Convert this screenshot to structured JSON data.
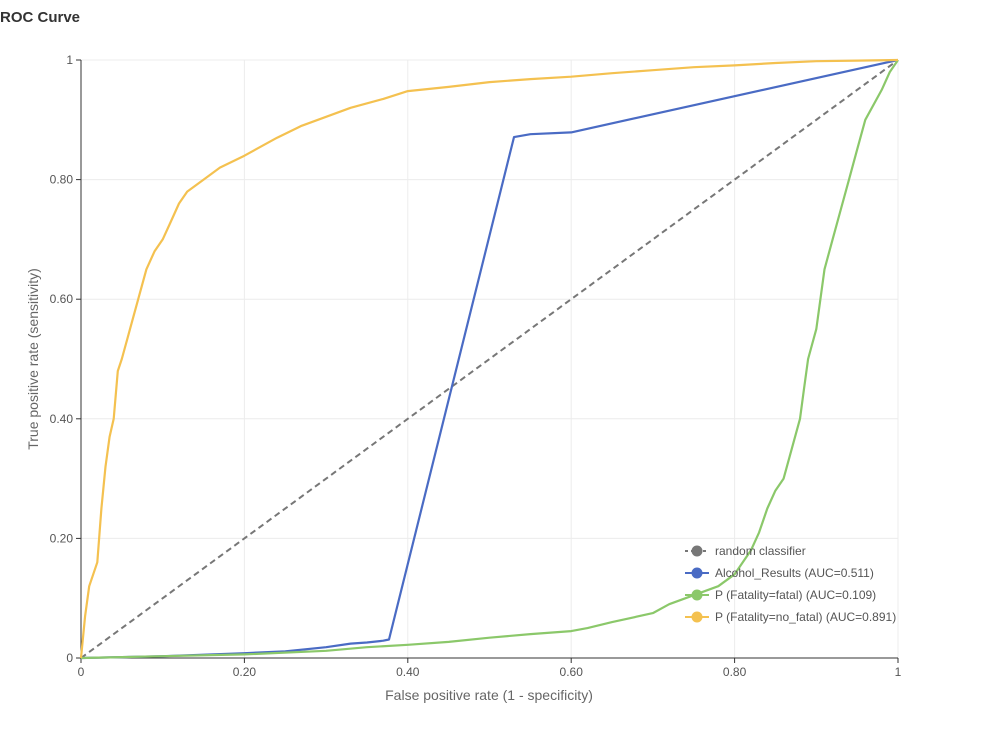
{
  "chart_data": {
    "type": "line",
    "title": "ROC Curve",
    "xlabel": "False positive rate (1 - specificity)",
    "ylabel": "True positive rate (sensitivity)",
    "xlim": [
      0,
      1
    ],
    "ylim": [
      0,
      1
    ],
    "grid": true,
    "legend_position": "bottom-right",
    "x_ticks": [
      {
        "value": 0,
        "label": "0"
      },
      {
        "value": 0.2,
        "label": "0.20"
      },
      {
        "value": 0.4,
        "label": "0.40"
      },
      {
        "value": 0.6,
        "label": "0.60"
      },
      {
        "value": 0.8,
        "label": "0.80"
      },
      {
        "value": 1,
        "label": "1"
      }
    ],
    "y_ticks": [
      {
        "value": 0,
        "label": "0"
      },
      {
        "value": 0.2,
        "label": "0.20"
      },
      {
        "value": 0.4,
        "label": "0.40"
      },
      {
        "value": 0.6,
        "label": "0.60"
      },
      {
        "value": 0.8,
        "label": "0.80"
      },
      {
        "value": 1,
        "label": "1"
      }
    ],
    "series": [
      {
        "name": "random classifier",
        "color": "#777777",
        "dashed": true,
        "points": [
          [
            0,
            0
          ],
          [
            1,
            1
          ]
        ]
      },
      {
        "name": "Alcohol_Results (AUC=0.511)",
        "color": "#4a6bc4",
        "dashed": false,
        "points": [
          [
            0,
            0
          ],
          [
            0.1,
            0.003
          ],
          [
            0.2,
            0.008
          ],
          [
            0.25,
            0.011
          ],
          [
            0.3,
            0.018
          ],
          [
            0.33,
            0.024
          ],
          [
            0.35,
            0.026
          ],
          [
            0.37,
            0.029
          ],
          [
            0.377,
            0.031
          ],
          [
            0.53,
            0.871
          ],
          [
            0.55,
            0.876
          ],
          [
            0.6,
            0.879
          ],
          [
            1,
            1
          ]
        ]
      },
      {
        "name": "P (Fatality=fatal) (AUC=0.109)",
        "color": "#8bc86a",
        "dashed": false,
        "points": [
          [
            0,
            0
          ],
          [
            0.1,
            0.003
          ],
          [
            0.2,
            0.006
          ],
          [
            0.3,
            0.012
          ],
          [
            0.35,
            0.018
          ],
          [
            0.4,
            0.022
          ],
          [
            0.45,
            0.027
          ],
          [
            0.5,
            0.034
          ],
          [
            0.55,
            0.04
          ],
          [
            0.6,
            0.045
          ],
          [
            0.62,
            0.05
          ],
          [
            0.65,
            0.06
          ],
          [
            0.7,
            0.075
          ],
          [
            0.72,
            0.09
          ],
          [
            0.74,
            0.1
          ],
          [
            0.76,
            0.11
          ],
          [
            0.78,
            0.12
          ],
          [
            0.8,
            0.14
          ],
          [
            0.82,
            0.18
          ],
          [
            0.83,
            0.21
          ],
          [
            0.84,
            0.25
          ],
          [
            0.85,
            0.28
          ],
          [
            0.86,
            0.3
          ],
          [
            0.87,
            0.35
          ],
          [
            0.88,
            0.4
          ],
          [
            0.885,
            0.45
          ],
          [
            0.89,
            0.5
          ],
          [
            0.9,
            0.55
          ],
          [
            0.905,
            0.6
          ],
          [
            0.91,
            0.65
          ],
          [
            0.92,
            0.7
          ],
          [
            0.93,
            0.75
          ],
          [
            0.94,
            0.8
          ],
          [
            0.95,
            0.85
          ],
          [
            0.96,
            0.9
          ],
          [
            0.98,
            0.95
          ],
          [
            0.99,
            0.98
          ],
          [
            1,
            1
          ]
        ]
      },
      {
        "name": "P (Fatality=no_fatal) (AUC=0.891)",
        "color": "#f4c150",
        "dashed": false,
        "points": [
          [
            0,
            0
          ],
          [
            0.005,
            0.07
          ],
          [
            0.01,
            0.12
          ],
          [
            0.02,
            0.16
          ],
          [
            0.025,
            0.25
          ],
          [
            0.03,
            0.32
          ],
          [
            0.035,
            0.37
          ],
          [
            0.04,
            0.4
          ],
          [
            0.045,
            0.48
          ],
          [
            0.05,
            0.5
          ],
          [
            0.06,
            0.55
          ],
          [
            0.07,
            0.6
          ],
          [
            0.08,
            0.65
          ],
          [
            0.09,
            0.68
          ],
          [
            0.1,
            0.7
          ],
          [
            0.11,
            0.73
          ],
          [
            0.12,
            0.76
          ],
          [
            0.13,
            0.78
          ],
          [
            0.15,
            0.8
          ],
          [
            0.17,
            0.82
          ],
          [
            0.2,
            0.84
          ],
          [
            0.22,
            0.855
          ],
          [
            0.24,
            0.87
          ],
          [
            0.27,
            0.89
          ],
          [
            0.3,
            0.905
          ],
          [
            0.33,
            0.92
          ],
          [
            0.37,
            0.935
          ],
          [
            0.4,
            0.948
          ],
          [
            0.45,
            0.955
          ],
          [
            0.5,
            0.963
          ],
          [
            0.55,
            0.968
          ],
          [
            0.6,
            0.972
          ],
          [
            0.65,
            0.978
          ],
          [
            0.7,
            0.983
          ],
          [
            0.75,
            0.988
          ],
          [
            0.8,
            0.991
          ],
          [
            0.85,
            0.995
          ],
          [
            0.9,
            0.998
          ],
          [
            0.95,
            0.999
          ],
          [
            1,
            1
          ]
        ]
      }
    ]
  }
}
